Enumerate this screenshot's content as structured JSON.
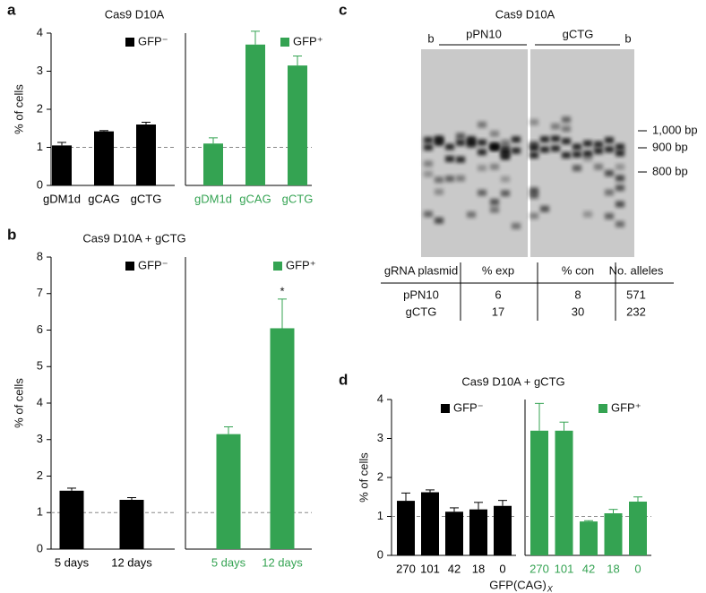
{
  "panel_labels": [
    "a",
    "b",
    "c",
    "d"
  ],
  "chart_data": [
    {
      "type": "bar",
      "title": "Cas9 D10A",
      "ylabel": "% of cells",
      "ylim": [
        0,
        4
      ],
      "yticks": [
        0,
        1,
        2,
        3,
        4
      ],
      "reference_line": 1,
      "categories": [
        "gDM1d",
        "gCAG",
        "gCTG"
      ],
      "series": [
        {
          "name": "GFP⁻",
          "color": "#000000",
          "values": [
            1.05,
            1.42,
            1.6
          ],
          "errors": [
            0.08,
            0.02,
            0.06
          ]
        },
        {
          "name": "GFP⁺",
          "color": "#34a352",
          "values": [
            1.1,
            3.7,
            3.15
          ],
          "errors": [
            0.15,
            0.35,
            0.25
          ]
        }
      ]
    },
    {
      "type": "bar",
      "title": "Cas9 D10A + gCTG",
      "ylabel": "% of cells",
      "ylim": [
        0,
        8
      ],
      "yticks": [
        0,
        1,
        2,
        3,
        4,
        5,
        6,
        7,
        8
      ],
      "reference_line": 1,
      "categories": [
        "5 days",
        "12 days"
      ],
      "annotation": "*",
      "series": [
        {
          "name": "GFP⁻",
          "color": "#000000",
          "values": [
            1.6,
            1.35
          ],
          "errors": [
            0.07,
            0.06
          ]
        },
        {
          "name": "GFP⁺",
          "color": "#34a352",
          "values": [
            3.15,
            6.05
          ],
          "errors": [
            0.2,
            0.8
          ]
        }
      ]
    },
    {
      "type": "bar",
      "title": "Cas9 D10A + gCTG",
      "ylabel": "% of cells",
      "ylim": [
        0,
        4
      ],
      "yticks": [
        0,
        1,
        2,
        3,
        4
      ],
      "reference_line": 1,
      "categories": [
        "270",
        "101",
        "42",
        "18",
        "0"
      ],
      "xlabel": "GFP(CAG)",
      "xlabel_subscript": "X",
      "series": [
        {
          "name": "GFP⁻",
          "color": "#000000",
          "values": [
            1.4,
            1.62,
            1.12,
            1.18,
            1.27
          ],
          "errors": [
            0.2,
            0.06,
            0.1,
            0.18,
            0.14
          ]
        },
        {
          "name": "GFP⁺",
          "color": "#34a352",
          "values": [
            3.2,
            3.2,
            0.87,
            1.08,
            1.38
          ],
          "errors": [
            0.7,
            0.22,
            0.02,
            0.1,
            0.12
          ]
        }
      ]
    }
  ],
  "gel": {
    "title": "Cas9 D10A",
    "blank_label": "b",
    "lane_groups": [
      "pPN10",
      "gCTG"
    ],
    "markers": [
      "1,000 bp",
      "900 bp",
      "800 bp"
    ]
  },
  "table": {
    "header": [
      "gRNA plasmid",
      "% exp",
      "% con",
      "No. alleles"
    ],
    "rows": [
      [
        "pPN10",
        6,
        8,
        571
      ],
      [
        "gCTG",
        17,
        30,
        232
      ]
    ]
  }
}
